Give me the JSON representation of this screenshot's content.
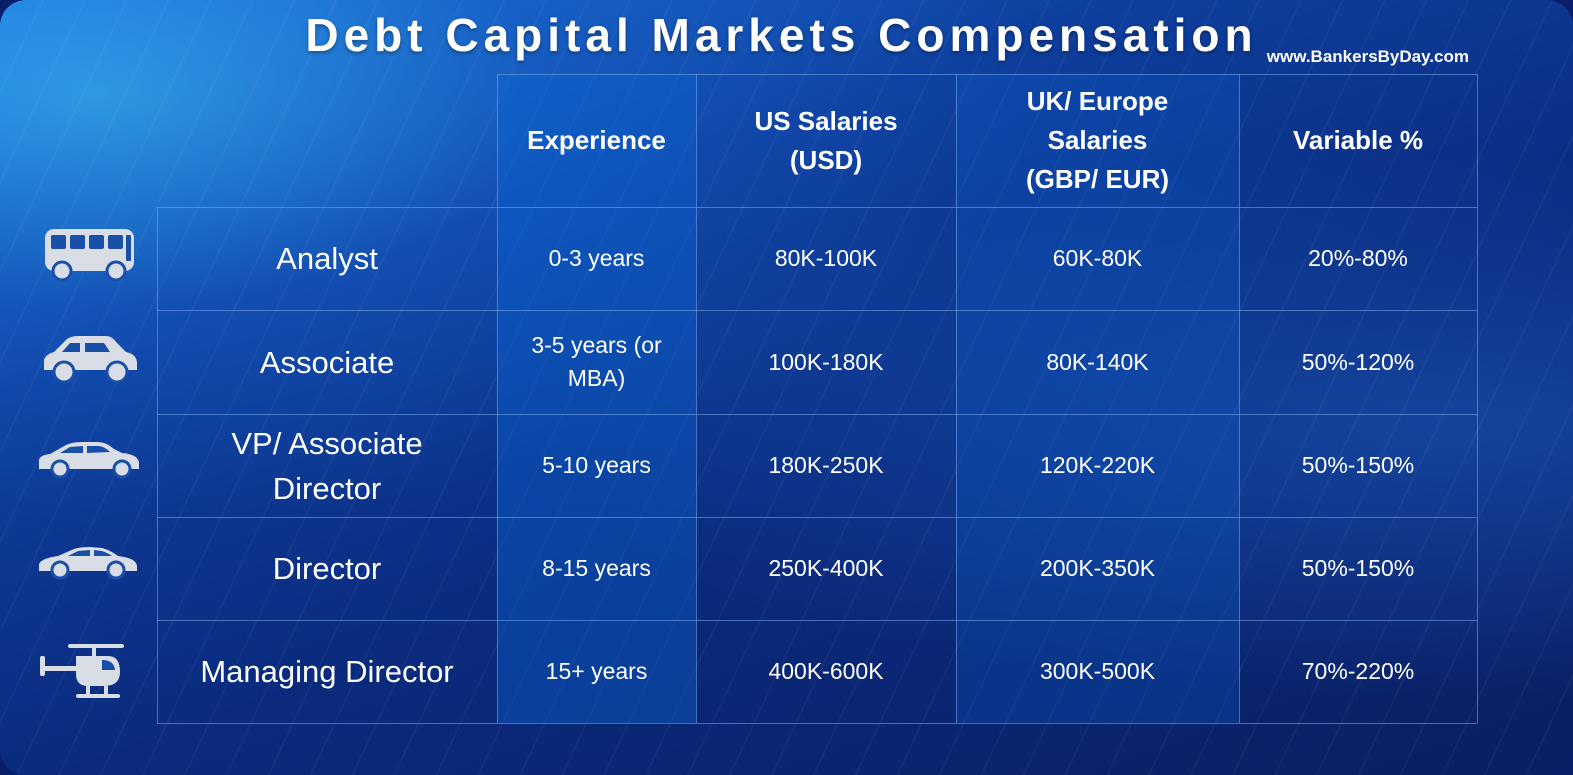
{
  "title": "Debt Capital Markets Compensation",
  "website": "www.BankersByDay.com",
  "colors": {
    "text": "#ffffff",
    "icon": "#d9dde6",
    "grid_line": "#78aaeb"
  },
  "headers": {
    "experience": "Experience",
    "us_salaries": [
      "US Salaries",
      "(USD)"
    ],
    "uk_salaries": [
      "UK/ Europe",
      "Salaries",
      "(GBP/ EUR)"
    ],
    "variable": "Variable %"
  },
  "rows": [
    {
      "icon": "bus-icon",
      "role": [
        "Analyst"
      ],
      "experience": [
        "0-3 years"
      ],
      "us": "80K-100K",
      "uk": "60K-80K",
      "variable": "20%-80%"
    },
    {
      "icon": "hatchback-car-icon",
      "role": [
        "Associate"
      ],
      "experience": [
        "3-5 years (or",
        "MBA)"
      ],
      "us": "100K-180K",
      "uk": "80K-140K",
      "variable": "50%-120%"
    },
    {
      "icon": "sedan-car-icon",
      "role": [
        "VP/ Associate",
        "Director"
      ],
      "experience": [
        "5-10 years"
      ],
      "us": "180K-250K",
      "uk": "120K-220K",
      "variable": "50%-150%"
    },
    {
      "icon": "sports-car-icon",
      "role": [
        "Director"
      ],
      "experience": [
        "8-15 years"
      ],
      "us": "250K-400K",
      "uk": "200K-350K",
      "variable": "50%-150%"
    },
    {
      "icon": "helicopter-icon",
      "role": [
        "Managing Director"
      ],
      "experience": [
        "15+ years"
      ],
      "us": "400K-600K",
      "uk": "300K-500K",
      "variable": "70%-220%"
    }
  ]
}
